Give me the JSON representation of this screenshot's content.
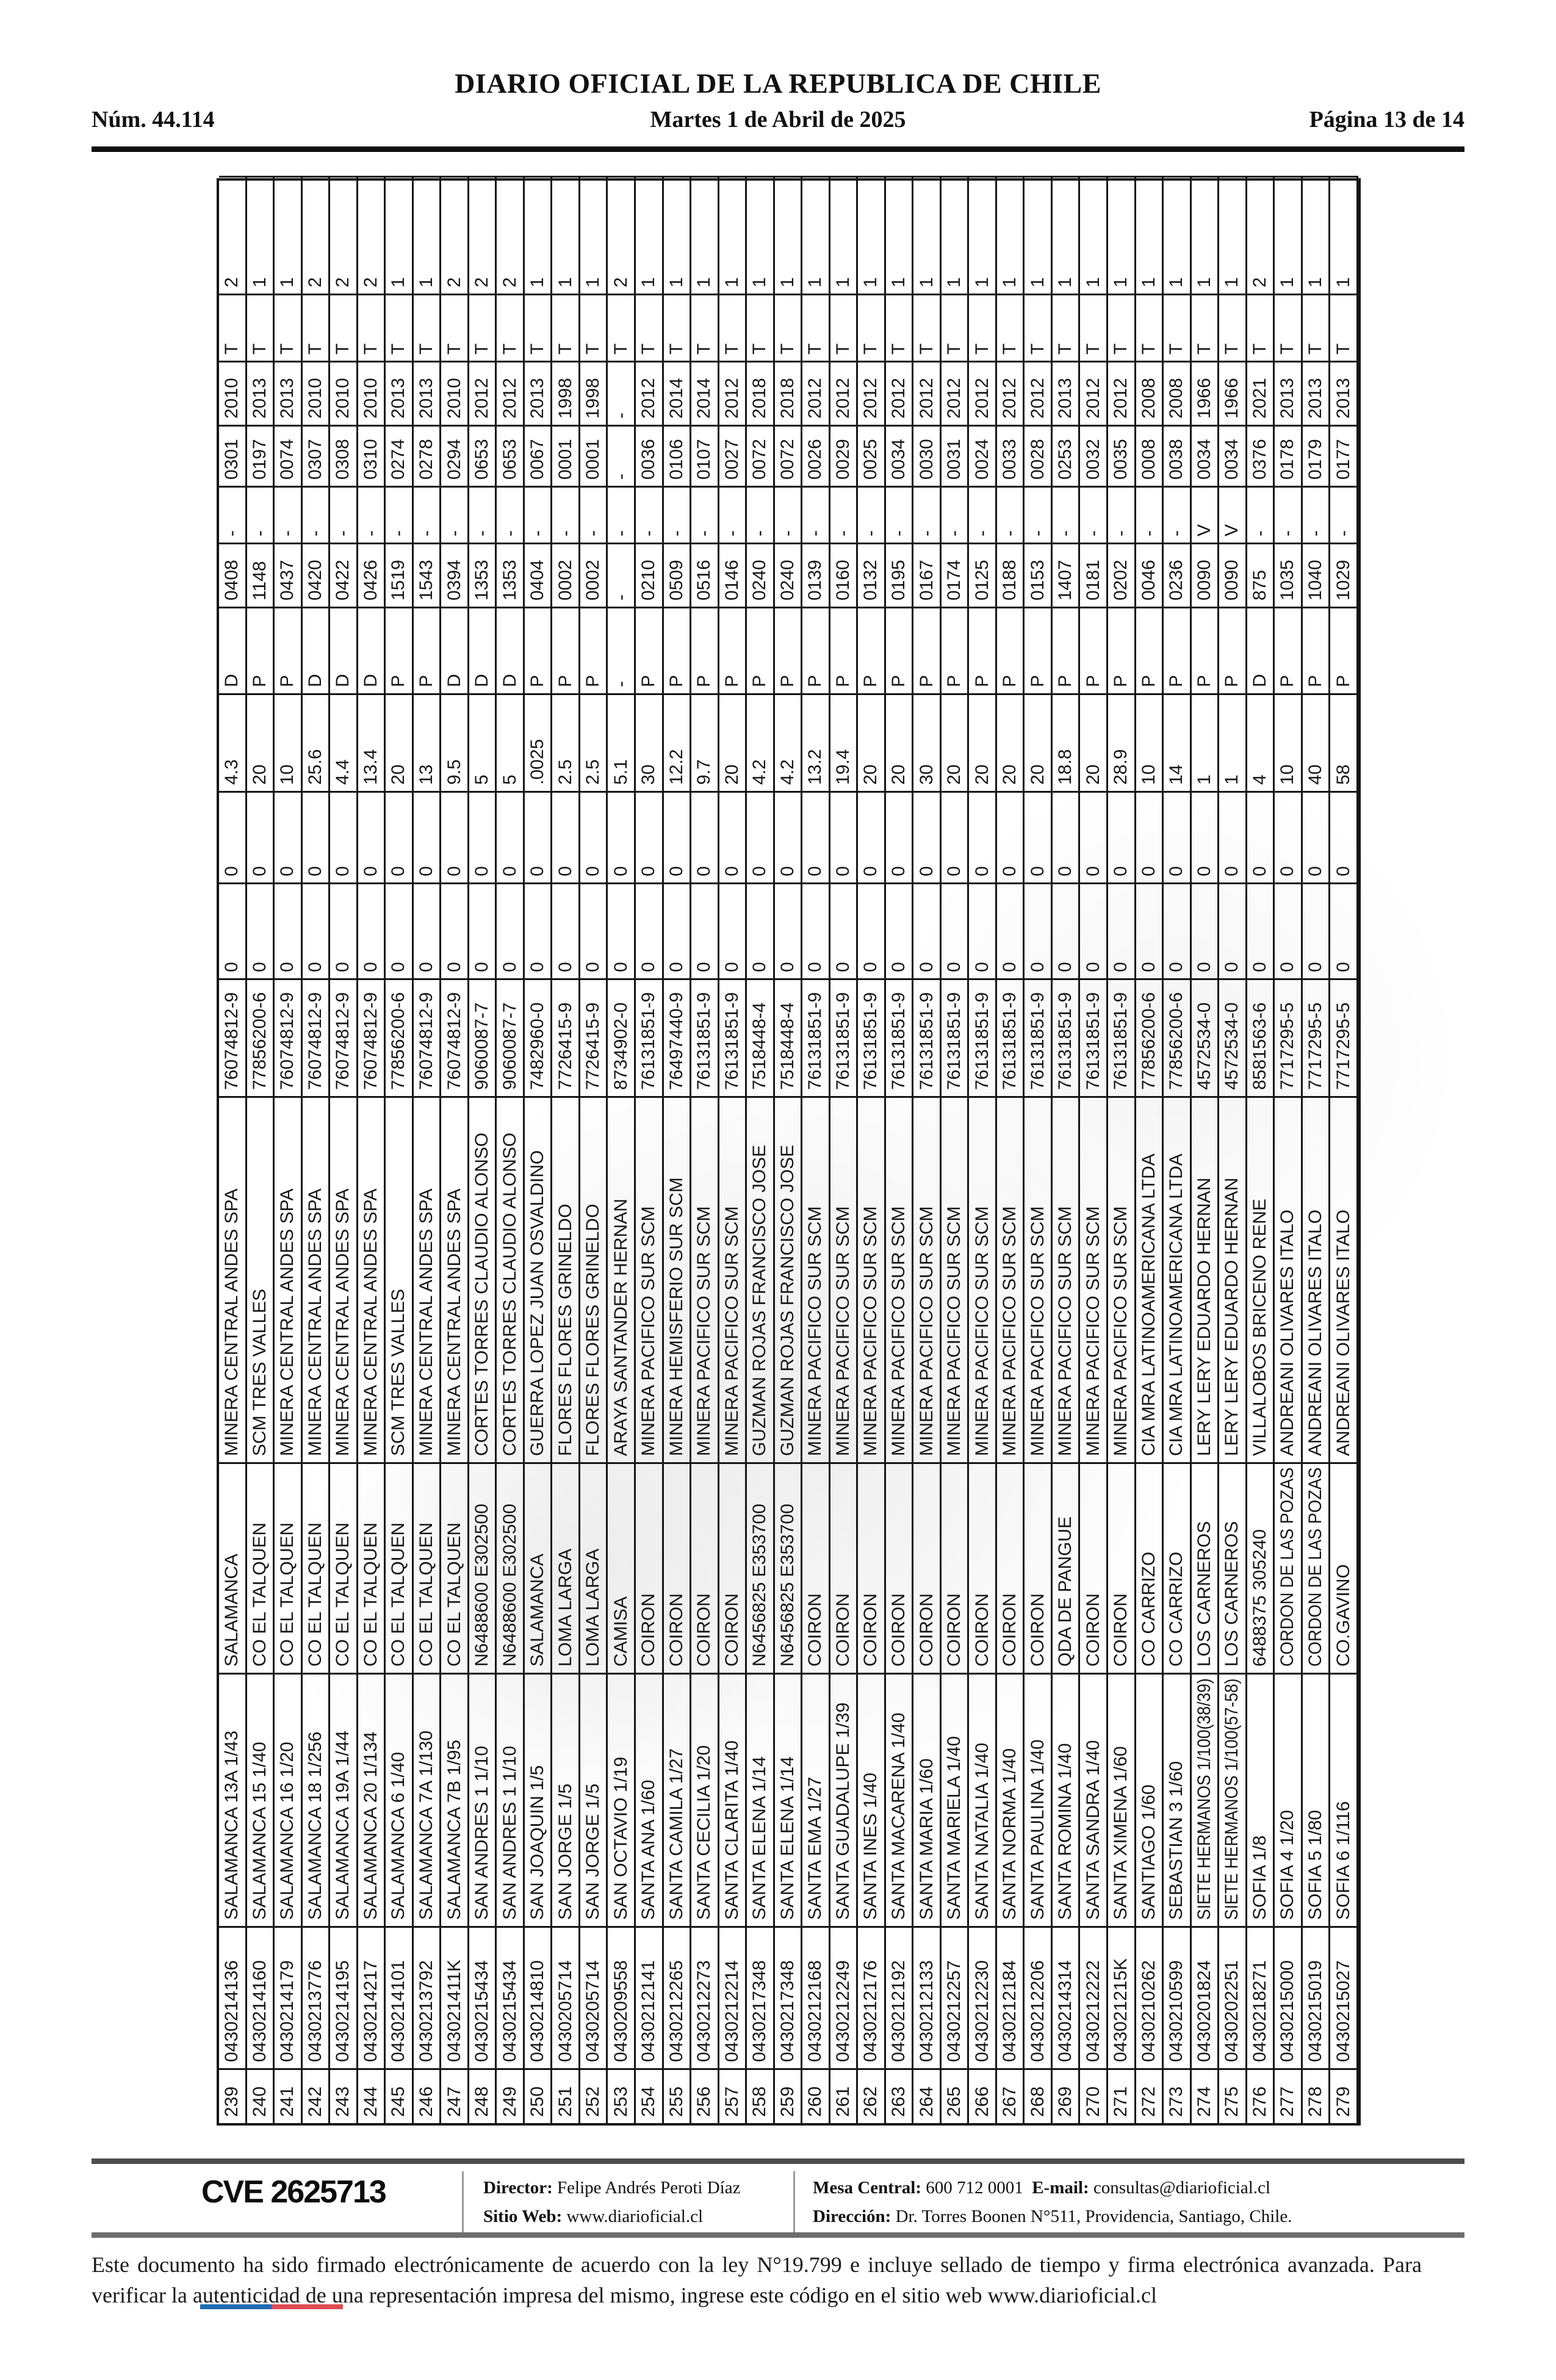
{
  "header": {
    "title": "DIARIO OFICIAL DE LA REPUBLICA DE CHILE",
    "issue": "Núm. 44.114",
    "date": "Martes 1 de Abril de 2025",
    "page": "Página 13 de 14"
  },
  "table": {
    "rows": [
      [
        "239",
        "0430214136",
        "SALAMANCA 13A 1/43",
        "SALAMANCA",
        "MINERA CENTRAL ANDES SPA",
        "76074812-9",
        "0",
        "0",
        "4.3",
        "D",
        "0408",
        "-",
        "0301",
        "2010",
        "T",
        "2"
      ],
      [
        "240",
        "0430214160",
        "SALAMANCA 15 1/40",
        "CO EL TALQUEN",
        "SCM TRES VALLES",
        "77856200-6",
        "0",
        "0",
        "20",
        "P",
        "1148",
        "-",
        "0197",
        "2013",
        "T",
        "1"
      ],
      [
        "241",
        "0430214179",
        "SALAMANCA 16 1/20",
        "CO EL TALQUEN",
        "MINERA CENTRAL ANDES SPA",
        "76074812-9",
        "0",
        "0",
        "10",
        "P",
        "0437",
        "-",
        "0074",
        "2013",
        "T",
        "1"
      ],
      [
        "242",
        "0430213776",
        "SALAMANCA 18 1/256",
        "CO EL TALQUEN",
        "MINERA CENTRAL ANDES SPA",
        "76074812-9",
        "0",
        "0",
        "25.6",
        "D",
        "0420",
        "-",
        "0307",
        "2010",
        "T",
        "2"
      ],
      [
        "243",
        "0430214195",
        "SALAMANCA 19A 1/44",
        "CO EL TALQUEN",
        "MINERA CENTRAL ANDES SPA",
        "76074812-9",
        "0",
        "0",
        "4.4",
        "D",
        "0422",
        "-",
        "0308",
        "2010",
        "T",
        "2"
      ],
      [
        "244",
        "0430214217",
        "SALAMANCA 20 1/134",
        "CO EL TALQUEN",
        "MINERA CENTRAL ANDES SPA",
        "76074812-9",
        "0",
        "0",
        "13.4",
        "D",
        "0426",
        "-",
        "0310",
        "2010",
        "T",
        "2"
      ],
      [
        "245",
        "0430214101",
        "SALAMANCA 6 1/40",
        "CO EL TALQUEN",
        "SCM TRES VALLES",
        "77856200-6",
        "0",
        "0",
        "20",
        "P",
        "1519",
        "-",
        "0274",
        "2013",
        "T",
        "1"
      ],
      [
        "246",
        "0430213792",
        "SALAMANCA 7A 1/130",
        "CO EL TALQUEN",
        "MINERA CENTRAL ANDES SPA",
        "76074812-9",
        "0",
        "0",
        "13",
        "P",
        "1543",
        "-",
        "0278",
        "2013",
        "T",
        "1"
      ],
      [
        "247",
        "043021411K",
        "SALAMANCA 7B 1/95",
        "CO EL TALQUEN",
        "MINERA CENTRAL ANDES SPA",
        "76074812-9",
        "0",
        "0",
        "9.5",
        "D",
        "0394",
        "-",
        "0294",
        "2010",
        "T",
        "2"
      ],
      [
        "248",
        "0430215434",
        "SAN ANDRES 1 1/10",
        "N6488600 E302500",
        "CORTES TORRES CLAUDIO ALONSO",
        "9060087-7",
        "0",
        "0",
        "5",
        "D",
        "1353",
        "-",
        "0653",
        "2012",
        "T",
        "2"
      ],
      [
        "249",
        "0430215434",
        "SAN ANDRES 1 1/10",
        "N6488600 E302500",
        "CORTES TORRES CLAUDIO ALONSO",
        "9060087-7",
        "0",
        "0",
        "5",
        "D",
        "1353",
        "-",
        "0653",
        "2012",
        "T",
        "2"
      ],
      [
        "250",
        "0430214810",
        "SAN JOAQUIN 1/5",
        "SALAMANCA",
        "GUERRA LOPEZ JUAN OSVALDINO",
        "7482960-0",
        "0",
        "0",
        ".0025",
        "P",
        "0404",
        "-",
        "0067",
        "2013",
        "T",
        "1"
      ],
      [
        "251",
        "0430205714",
        "SAN JORGE 1/5",
        "LOMA LARGA",
        "FLORES FLORES GRINELDO",
        "7726415-9",
        "0",
        "0",
        "2.5",
        "P",
        "0002",
        "-",
        "0001",
        "1998",
        "T",
        "1"
      ],
      [
        "252",
        "0430205714",
        "SAN JORGE 1/5",
        "LOMA LARGA",
        "FLORES FLORES GRINELDO",
        "7726415-9",
        "0",
        "0",
        "2.5",
        "P",
        "0002",
        "-",
        "0001",
        "1998",
        "T",
        "1"
      ],
      [
        "253",
        "0430209558",
        "SAN OCTAVIO 1/19",
        "CAMISA",
        "ARAYA SANTANDER HERNAN",
        "8734902-0",
        "0",
        "0",
        "5.1",
        "-",
        "-",
        "-",
        "-",
        "-",
        "T",
        "2"
      ],
      [
        "254",
        "0430212141",
        "SANTA ANA 1/60",
        "COIRON",
        "MINERA PACIFICO SUR SCM",
        "76131851-9",
        "0",
        "0",
        "30",
        "P",
        "0210",
        "-",
        "0036",
        "2012",
        "T",
        "1"
      ],
      [
        "255",
        "0430212265",
        "SANTA CAMILA 1/27",
        "COIRON",
        "MINERA HEMISFERIO SUR SCM",
        "76497440-9",
        "0",
        "0",
        "12.2",
        "P",
        "0509",
        "-",
        "0106",
        "2014",
        "T",
        "1"
      ],
      [
        "256",
        "0430212273",
        "SANTA CECILIA 1/20",
        "COIRON",
        "MINERA PACIFICO SUR SCM",
        "76131851-9",
        "0",
        "0",
        "9.7",
        "P",
        "0516",
        "-",
        "0107",
        "2014",
        "T",
        "1"
      ],
      [
        "257",
        "0430212214",
        "SANTA CLARITA 1/40",
        "COIRON",
        "MINERA PACIFICO SUR SCM",
        "76131851-9",
        "0",
        "0",
        "20",
        "P",
        "0146",
        "-",
        "0027",
        "2012",
        "T",
        "1"
      ],
      [
        "258",
        "0430217348",
        "SANTA ELENA 1/14",
        "N6456825 E353700",
        "GUZMAN ROJAS FRANCISCO JOSE",
        "7518448-4",
        "0",
        "0",
        "4.2",
        "P",
        "0240",
        "-",
        "0072",
        "2018",
        "T",
        "1"
      ],
      [
        "259",
        "0430217348",
        "SANTA ELENA 1/14",
        "N6456825 E353700",
        "GUZMAN ROJAS FRANCISCO JOSE",
        "7518448-4",
        "0",
        "0",
        "4.2",
        "P",
        "0240",
        "-",
        "0072",
        "2018",
        "T",
        "1"
      ],
      [
        "260",
        "0430212168",
        "SANTA EMA 1/27",
        "COIRON",
        "MINERA PACIFICO SUR SCM",
        "76131851-9",
        "0",
        "0",
        "13.2",
        "P",
        "0139",
        "-",
        "0026",
        "2012",
        "T",
        "1"
      ],
      [
        "261",
        "0430212249",
        "SANTA GUADALUPE 1/39",
        "COIRON",
        "MINERA PACIFICO SUR SCM",
        "76131851-9",
        "0",
        "0",
        "19.4",
        "P",
        "0160",
        "-",
        "0029",
        "2012",
        "T",
        "1"
      ],
      [
        "262",
        "0430212176",
        "SANTA INES 1/40",
        "COIRON",
        "MINERA PACIFICO SUR SCM",
        "76131851-9",
        "0",
        "0",
        "20",
        "P",
        "0132",
        "-",
        "0025",
        "2012",
        "T",
        "1"
      ],
      [
        "263",
        "0430212192",
        "SANTA MACARENA 1/40",
        "COIRON",
        "MINERA PACIFICO SUR SCM",
        "76131851-9",
        "0",
        "0",
        "20",
        "P",
        "0195",
        "-",
        "0034",
        "2012",
        "T",
        "1"
      ],
      [
        "264",
        "0430212133",
        "SANTA MARIA 1/60",
        "COIRON",
        "MINERA PACIFICO SUR SCM",
        "76131851-9",
        "0",
        "0",
        "30",
        "P",
        "0167",
        "-",
        "0030",
        "2012",
        "T",
        "1"
      ],
      [
        "265",
        "0430212257",
        "SANTA MARIELA 1/40",
        "COIRON",
        "MINERA PACIFICO SUR SCM",
        "76131851-9",
        "0",
        "0",
        "20",
        "P",
        "0174",
        "-",
        "0031",
        "2012",
        "T",
        "1"
      ],
      [
        "266",
        "0430212230",
        "SANTA NATALIA 1/40",
        "COIRON",
        "MINERA PACIFICO SUR SCM",
        "76131851-9",
        "0",
        "0",
        "20",
        "P",
        "0125",
        "-",
        "0024",
        "2012",
        "T",
        "1"
      ],
      [
        "267",
        "0430212184",
        "SANTA NORMA 1/40",
        "COIRON",
        "MINERA PACIFICO SUR SCM",
        "76131851-9",
        "0",
        "0",
        "20",
        "P",
        "0188",
        "-",
        "0033",
        "2012",
        "T",
        "1"
      ],
      [
        "268",
        "0430212206",
        "SANTA PAULINA 1/40",
        "COIRON",
        "MINERA PACIFICO SUR SCM",
        "76131851-9",
        "0",
        "0",
        "20",
        "P",
        "0153",
        "-",
        "0028",
        "2012",
        "T",
        "1"
      ],
      [
        "269",
        "0430214314",
        "SANTA ROMINA 1/40",
        "QDA DE PANGUE",
        "MINERA PACIFICO SUR SCM",
        "76131851-9",
        "0",
        "0",
        "18.8",
        "P",
        "1407",
        "-",
        "0253",
        "2013",
        "T",
        "1"
      ],
      [
        "270",
        "0430212222",
        "SANTA SANDRA 1/40",
        "COIRON",
        "MINERA PACIFICO SUR SCM",
        "76131851-9",
        "0",
        "0",
        "20",
        "P",
        "0181",
        "-",
        "0032",
        "2012",
        "T",
        "1"
      ],
      [
        "271",
        "043021215K",
        "SANTA XIMENA 1/60",
        "COIRON",
        "MINERA PACIFICO SUR SCM",
        "76131851-9",
        "0",
        "0",
        "28.9",
        "P",
        "0202",
        "-",
        "0035",
        "2012",
        "T",
        "1"
      ],
      [
        "272",
        "0430210262",
        "SANTIAGO 1/60",
        "CO CARRIZO",
        "CIA MRA LATINOAMERICANA LTDA",
        "77856200-6",
        "0",
        "0",
        "10",
        "P",
        "0046",
        "-",
        "0008",
        "2008",
        "T",
        "1"
      ],
      [
        "273",
        "0430210599",
        "SEBASTIAN 3 1/60",
        "CO CARRIZO",
        "CIA MRA LATINOAMERICANA LTDA",
        "77856200-6",
        "0",
        "0",
        "14",
        "P",
        "0236",
        "-",
        "0038",
        "2008",
        "T",
        "1"
      ],
      [
        "274",
        "0430201824",
        "SIETE HERMANOS 1/100(38/39)",
        "LOS CARNEROS",
        "LERY LERY EDUARDO HERNAN",
        "4572534-0",
        "0",
        "0",
        "1",
        "P",
        "0090",
        "V",
        "0034",
        "1966",
        "T",
        "1"
      ],
      [
        "275",
        "0430202251",
        "SIETE HERMANOS 1/100(57-58)",
        "LOS CARNEROS",
        "LERY LERY EDUARDO HERNAN",
        "4572534-0",
        "0",
        "0",
        "1",
        "P",
        "0090",
        "V",
        "0034",
        "1966",
        "T",
        "1"
      ],
      [
        "276",
        "0430218271",
        "SOFIA 1/8",
        "6488375 305240",
        "VILLALOBOS BRICENO RENE",
        "8581563-6",
        "0",
        "0",
        "4",
        "D",
        "875",
        "-",
        "0376",
        "2021",
        "T",
        "2"
      ],
      [
        "277",
        "0430215000",
        "SOFIA 4 1/20",
        "CORDON DE LAS POZAS",
        "ANDREANI OLIVARES ITALO",
        "7717295-5",
        "0",
        "0",
        "10",
        "P",
        "1035",
        "-",
        "0178",
        "2013",
        "T",
        "1"
      ],
      [
        "278",
        "0430215019",
        "SOFIA 5 1/80",
        "CORDON DE LAS POZAS",
        "ANDREANI OLIVARES ITALO",
        "7717295-5",
        "0",
        "0",
        "40",
        "P",
        "1040",
        "-",
        "0179",
        "2013",
        "T",
        "1"
      ],
      [
        "279",
        "0430215027",
        "SOFIA 6 1/116",
        "CO.GAVINO",
        "ANDREANI OLIVARES ITALO",
        "7717295-5",
        "0",
        "0",
        "58",
        "P",
        "1029",
        "-",
        "0177",
        "2013",
        "T",
        "1"
      ]
    ]
  },
  "footer": {
    "cve": "CVE 2625713",
    "director_label": "Director:",
    "director_name": "Felipe Andrés Peroti Díaz",
    "website_label": "Sitio Web:",
    "website": "www.diarioficial.cl",
    "phone_label": "Mesa Central:",
    "phone": "600 712 0001",
    "email_label": "E-mail:",
    "email": "consultas@diarioficial.cl",
    "address_label": "Dirección:",
    "address": "Dr. Torres Boonen N°511, Providencia, Santiago, Chile.",
    "legal": "Este documento ha sido firmado electrónicamente de acuerdo con la ley N°19.799 e incluye sellado de tiempo y firma electrónica avanzada. Para verificar la autenticidad de una representación impresa del mismo, ingrese este código en el sitio web www.diarioficial.cl"
  },
  "colors": {
    "flag_blue": "#1e6bb0",
    "flag_red": "#e04a54"
  }
}
